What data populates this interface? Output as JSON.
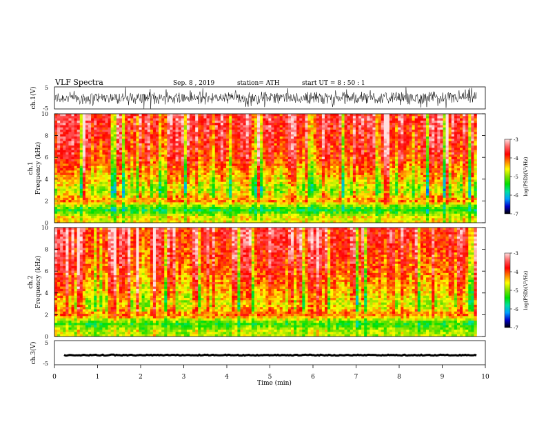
{
  "header": {
    "title": "VLF Spectra",
    "date": "Sep. 8 , 2019",
    "station": "station= ATH",
    "start_ut": "start UT =  8 : 50 : 1"
  },
  "chart_data": {
    "type": "heatmap",
    "xlabel": "Time (min)",
    "xlim": [
      0,
      10
    ],
    "x_ticks": [
      "0",
      "1",
      "2",
      "3",
      "4",
      "5",
      "6",
      "7",
      "8",
      "9",
      "10"
    ],
    "panels": [
      {
        "name": "ch1-waveform",
        "ylabel": "ch.1(V)",
        "ylim": [
          -5,
          5
        ],
        "y_ticks": [
          "5",
          "-5"
        ],
        "data_extent_min": 9.8
      },
      {
        "name": "ch1-spectrogram",
        "ylabel_line1": "ch.1",
        "ylabel_line2": "Frequency (kHz)",
        "ylim": [
          0,
          10
        ],
        "y_ticks": [
          "0",
          "2",
          "4",
          "6",
          "8",
          "10"
        ],
        "typical_psd_profile": [
          {
            "f_khz": 0.5,
            "log_psd": -4.6
          },
          {
            "f_khz": 1.2,
            "log_psd": -5.5
          },
          {
            "f_khz": 2.0,
            "log_psd": -4.2
          },
          {
            "f_khz": 3.0,
            "log_psd": -4.9
          },
          {
            "f_khz": 4.0,
            "log_psd": -4.5
          },
          {
            "f_khz": 6.0,
            "log_psd": -3.9
          },
          {
            "f_khz": 9.0,
            "log_psd": -3.6
          }
        ]
      },
      {
        "name": "ch2-spectrogram",
        "ylabel_line1": "ch.2",
        "ylabel_line2": "Frequency (kHz)",
        "ylim": [
          0,
          10
        ],
        "y_ticks": [
          "0",
          "2",
          "4",
          "6",
          "8",
          "10"
        ],
        "typical_psd_profile": [
          {
            "f_khz": 0.5,
            "log_psd": -4.8
          },
          {
            "f_khz": 1.2,
            "log_psd": -5.3
          },
          {
            "f_khz": 2.0,
            "log_psd": -4.1
          },
          {
            "f_khz": 3.0,
            "log_psd": -4.6
          },
          {
            "f_khz": 4.0,
            "log_psd": -4.3
          },
          {
            "f_khz": 6.0,
            "log_psd": -3.9
          },
          {
            "f_khz": 9.0,
            "log_psd": -3.6
          }
        ]
      },
      {
        "name": "ch3-waveform",
        "ylabel": "ch.3(V)",
        "ylim": [
          -5,
          5
        ],
        "y_ticks": [
          "5",
          "-5"
        ],
        "baseline_value": -1.0
      }
    ],
    "colorbar": {
      "label": "log(PSD)(V²/Hz)",
      "range": [
        -7,
        -3
      ],
      "ticks": [
        "-3",
        "-4",
        "-5",
        "-6",
        "-7"
      ],
      "colors": [
        "#000000",
        "#0000cc",
        "#00a0ff",
        "#00e0a0",
        "#00e000",
        "#80e000",
        "#ffff00",
        "#ff8000",
        "#ff0000",
        "#ff6060",
        "#ffe0e0"
      ]
    },
    "grid": false
  }
}
